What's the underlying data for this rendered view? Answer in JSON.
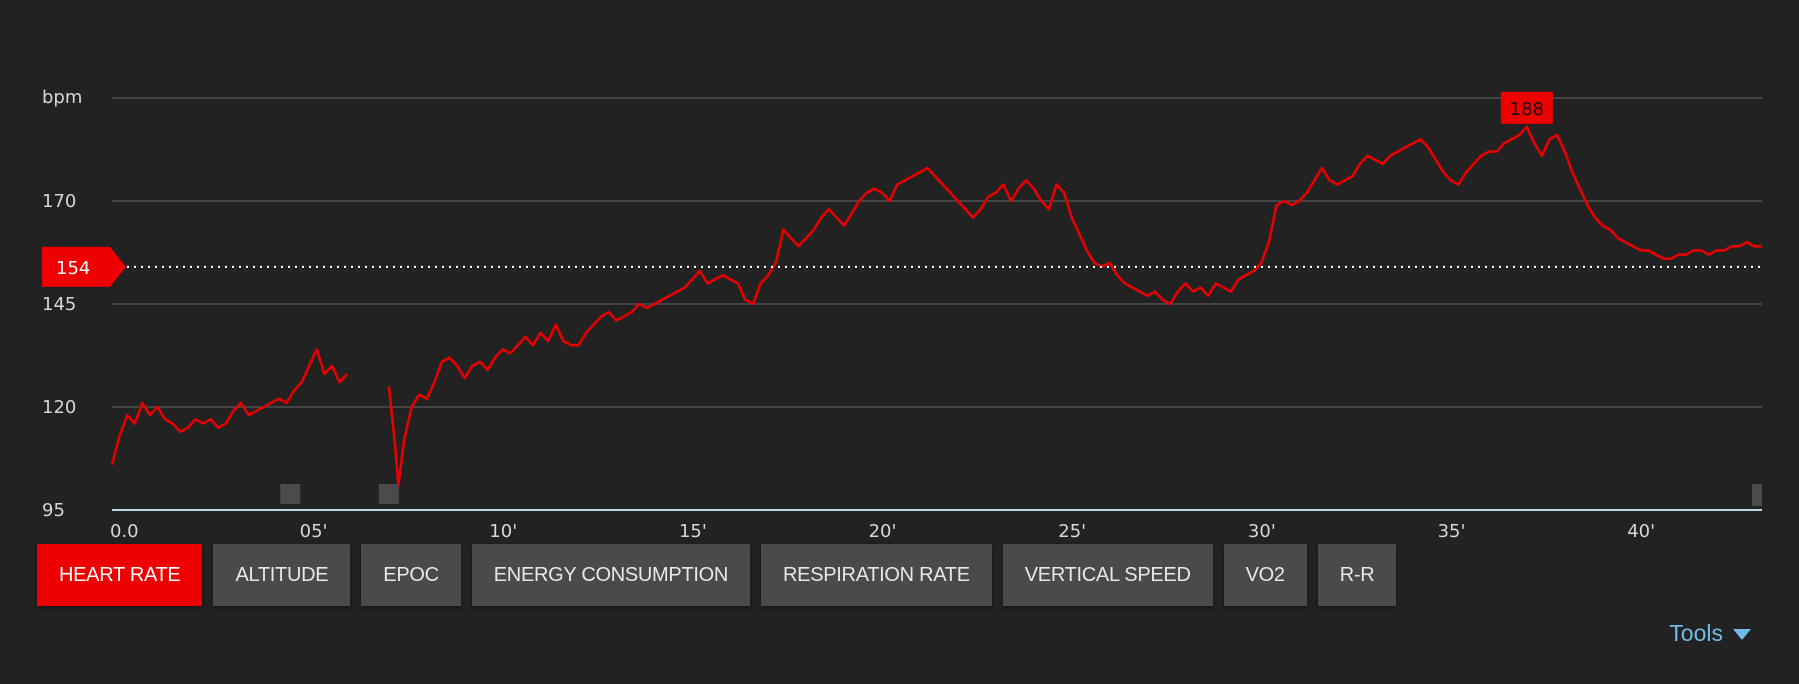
{
  "chart_data": {
    "type": "line",
    "y_unit_label": "bpm",
    "ylim": [
      95,
      195
    ],
    "y_ticks": [
      "170",
      "145",
      "120",
      "95"
    ],
    "xlim": [
      0,
      43.5
    ],
    "x_ticks": [
      "0.0",
      "05'",
      "10'",
      "15'",
      "20'",
      "25'",
      "30'",
      "35'",
      "40'"
    ],
    "average_marker": {
      "value": 154,
      "label": "154"
    },
    "max_marker": {
      "value": 188,
      "label": "188"
    },
    "series": [
      {
        "color": "#e80000",
        "segments": [
          [
            [
              0.0,
              106
            ],
            [
              0.2,
              113
            ],
            [
              0.4,
              118
            ],
            [
              0.6,
              116
            ],
            [
              0.8,
              121
            ],
            [
              1.0,
              118
            ],
            [
              1.2,
              120
            ],
            [
              1.4,
              117
            ],
            [
              1.6,
              116
            ],
            [
              1.8,
              114
            ],
            [
              2.0,
              115
            ],
            [
              2.2,
              117
            ],
            [
              2.4,
              116
            ],
            [
              2.6,
              117
            ],
            [
              2.8,
              115
            ],
            [
              3.0,
              116
            ],
            [
              3.2,
              119
            ],
            [
              3.4,
              121
            ],
            [
              3.6,
              118
            ],
            [
              3.8,
              119
            ],
            [
              4.0,
              120
            ],
            [
              4.2,
              121
            ],
            [
              4.4,
              122
            ],
            [
              4.6,
              121
            ],
            [
              4.8,
              124
            ],
            [
              5.0,
              126
            ],
            [
              5.2,
              130
            ],
            [
              5.4,
              134
            ],
            [
              5.6,
              128
            ],
            [
              5.8,
              130
            ],
            [
              6.0,
              126
            ],
            [
              6.2,
              128
            ]
          ],
          [
            [
              7.3,
              125
            ],
            [
              7.45,
              112
            ],
            [
              7.55,
              101
            ],
            [
              7.7,
              112
            ],
            [
              7.9,
              120
            ],
            [
              8.1,
              123
            ],
            [
              8.3,
              122
            ],
            [
              8.5,
              126
            ],
            [
              8.7,
              131
            ],
            [
              8.9,
              132
            ],
            [
              9.1,
              130
            ],
            [
              9.3,
              127
            ],
            [
              9.5,
              130
            ],
            [
              9.7,
              131
            ],
            [
              9.9,
              129
            ],
            [
              10.1,
              132
            ],
            [
              10.3,
              134
            ],
            [
              10.5,
              133
            ],
            [
              10.7,
              135
            ],
            [
              10.9,
              137
            ],
            [
              11.1,
              135
            ],
            [
              11.3,
              138
            ],
            [
              11.5,
              136
            ],
            [
              11.7,
              140
            ],
            [
              11.9,
              136
            ],
            [
              12.1,
              135
            ],
            [
              12.3,
              135
            ],
            [
              12.5,
              138
            ],
            [
              12.7,
              140
            ],
            [
              12.9,
              142
            ],
            [
              13.1,
              143
            ],
            [
              13.3,
              141
            ],
            [
              13.5,
              142
            ],
            [
              13.7,
              143
            ],
            [
              13.9,
              145
            ],
            [
              14.1,
              144
            ],
            [
              14.3,
              145
            ],
            [
              14.5,
              146
            ],
            [
              14.7,
              147
            ],
            [
              14.9,
              148
            ],
            [
              15.1,
              149
            ],
            [
              15.3,
              151
            ],
            [
              15.5,
              153
            ],
            [
              15.7,
              150
            ],
            [
              15.9,
              151
            ],
            [
              16.1,
              152
            ],
            [
              16.3,
              151
            ],
            [
              16.5,
              150
            ],
            [
              16.7,
              146
            ],
            [
              16.9,
              145
            ],
            [
              17.1,
              150
            ],
            [
              17.3,
              152
            ],
            [
              17.5,
              155
            ],
            [
              17.7,
              163
            ],
            [
              17.9,
              161
            ],
            [
              18.1,
              159
            ],
            [
              18.3,
              161
            ],
            [
              18.5,
              163
            ],
            [
              18.7,
              166
            ],
            [
              18.9,
              168
            ],
            [
              19.1,
              166
            ],
            [
              19.3,
              164
            ],
            [
              19.5,
              167
            ],
            [
              19.7,
              170
            ],
            [
              19.9,
              172
            ],
            [
              20.1,
              173
            ],
            [
              20.3,
              172
            ],
            [
              20.5,
              170
            ],
            [
              20.7,
              174
            ],
            [
              20.9,
              175
            ],
            [
              21.1,
              176
            ],
            [
              21.3,
              177
            ],
            [
              21.5,
              178
            ],
            [
              21.7,
              176
            ],
            [
              21.9,
              174
            ],
            [
              22.1,
              172
            ],
            [
              22.3,
              170
            ],
            [
              22.5,
              168
            ],
            [
              22.7,
              166
            ],
            [
              22.9,
              168
            ],
            [
              23.1,
              171
            ],
            [
              23.3,
              172
            ],
            [
              23.5,
              174
            ],
            [
              23.7,
              170
            ],
            [
              23.9,
              173
            ],
            [
              24.1,
              175
            ],
            [
              24.3,
              173
            ],
            [
              24.5,
              170
            ],
            [
              24.7,
              168
            ],
            [
              24.9,
              174
            ],
            [
              25.1,
              172
            ],
            [
              25.3,
              166
            ],
            [
              25.5,
              162
            ],
            [
              25.7,
              158
            ],
            [
              25.9,
              155
            ],
            [
              26.1,
              154
            ],
            [
              26.3,
              155
            ],
            [
              26.5,
              152
            ],
            [
              26.7,
              150
            ],
            [
              26.9,
              149
            ],
            [
              27.1,
              148
            ],
            [
              27.3,
              147
            ],
            [
              27.5,
              148
            ],
            [
              27.7,
              146
            ],
            [
              27.9,
              145
            ],
            [
              28.1,
              148
            ],
            [
              28.3,
              150
            ],
            [
              28.5,
              148
            ],
            [
              28.7,
              149
            ],
            [
              28.9,
              147
            ],
            [
              29.1,
              150
            ],
            [
              29.3,
              149
            ],
            [
              29.5,
              148
            ],
            [
              29.7,
              151
            ],
            [
              29.9,
              152
            ],
            [
              30.1,
              153
            ],
            [
              30.3,
              155
            ],
            [
              30.5,
              160
            ],
            [
              30.7,
              169
            ],
            [
              30.9,
              170
            ],
            [
              31.1,
              169
            ],
            [
              31.3,
              170
            ],
            [
              31.5,
              172
            ],
            [
              31.7,
              175
            ],
            [
              31.9,
              178
            ],
            [
              32.1,
              175
            ],
            [
              32.3,
              174
            ],
            [
              32.5,
              175
            ],
            [
              32.7,
              176
            ],
            [
              32.9,
              179
            ],
            [
              33.1,
              181
            ],
            [
              33.3,
              180
            ],
            [
              33.5,
              179
            ],
            [
              33.7,
              181
            ],
            [
              33.9,
              182
            ],
            [
              34.1,
              183
            ],
            [
              34.3,
              184
            ],
            [
              34.5,
              185
            ],
            [
              34.7,
              183
            ],
            [
              34.9,
              180
            ],
            [
              35.1,
              177
            ],
            [
              35.3,
              175
            ],
            [
              35.5,
              174
            ],
            [
              35.7,
              177
            ],
            [
              35.9,
              179
            ],
            [
              36.1,
              181
            ],
            [
              36.3,
              182
            ],
            [
              36.5,
              182
            ],
            [
              36.7,
              184
            ],
            [
              36.9,
              185
            ],
            [
              37.1,
              186
            ],
            [
              37.3,
              188
            ],
            [
              37.5,
              184
            ],
            [
              37.7,
              181
            ],
            [
              37.9,
              185
            ],
            [
              38.1,
              186
            ],
            [
              38.3,
              182
            ],
            [
              38.5,
              177
            ],
            [
              38.7,
              173
            ],
            [
              38.9,
              169
            ],
            [
              39.1,
              166
            ],
            [
              39.3,
              164
            ],
            [
              39.5,
              163
            ],
            [
              39.7,
              161
            ],
            [
              39.9,
              160
            ],
            [
              40.1,
              159
            ],
            [
              40.3,
              158
            ],
            [
              40.5,
              158
            ],
            [
              40.7,
              157
            ],
            [
              40.9,
              156
            ],
            [
              41.1,
              156
            ],
            [
              41.3,
              157
            ],
            [
              41.5,
              157
            ],
            [
              41.7,
              158
            ],
            [
              41.9,
              158
            ],
            [
              42.1,
              157
            ],
            [
              42.3,
              158
            ],
            [
              42.5,
              158
            ],
            [
              42.7,
              159
            ],
            [
              42.9,
              159
            ],
            [
              43.1,
              160
            ],
            [
              43.3,
              159
            ],
            [
              43.5,
              159
            ]
          ]
        ]
      }
    ]
  },
  "tabs": [
    {
      "label": "HEART RATE",
      "active": true
    },
    {
      "label": "ALTITUDE",
      "active": false
    },
    {
      "label": "EPOC",
      "active": false
    },
    {
      "label": "ENERGY CONSUMPTION",
      "active": false
    },
    {
      "label": "RESPIRATION RATE",
      "active": false
    },
    {
      "label": "VERTICAL SPEED",
      "active": false
    },
    {
      "label": "VO2",
      "active": false
    },
    {
      "label": "R-R",
      "active": false
    }
  ],
  "tools": {
    "label": "Tools",
    "icon": "caret-down-icon"
  }
}
